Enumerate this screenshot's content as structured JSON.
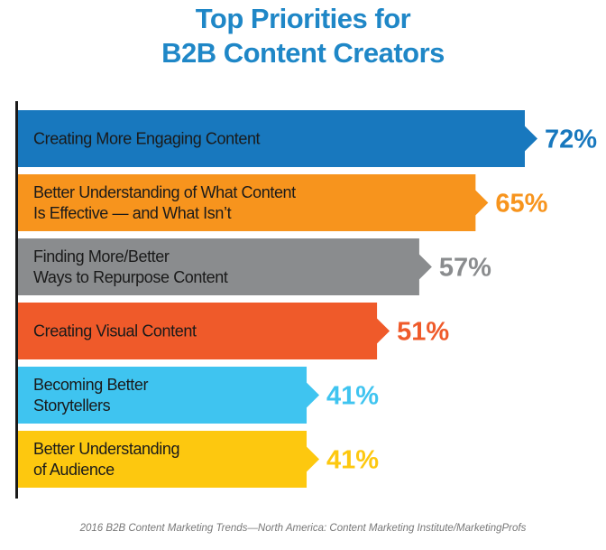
{
  "chart_data": {
    "type": "bar",
    "orientation": "horizontal",
    "title": [
      "Top Priorities for",
      "B2B Content Creators"
    ],
    "categories": [
      [
        "Creating More Engaging Content"
      ],
      [
        "Better Understanding of What Content",
        "Is Effective — and What Isn’t"
      ],
      [
        "Finding More/Better",
        "Ways to Repurpose Content"
      ],
      [
        "Creating Visual Content"
      ],
      [
        "Becoming Better",
        "Storytellers"
      ],
      [
        "Better Understanding",
        "of Audience"
      ]
    ],
    "values": [
      72,
      65,
      57,
      51,
      41,
      41
    ],
    "value_labels": [
      "72%",
      "65%",
      "57%",
      "51%",
      "41%",
      "41%"
    ],
    "colors": [
      "#1878be",
      "#f7941d",
      "#8a8c8e",
      "#ef5a2a",
      "#3fc4f0",
      "#fdc80f"
    ],
    "value_label_colors": [
      "#1878be",
      "#f7941d",
      "#8a8c8e",
      "#ef5a2a",
      "#3fc4f0",
      "#fdc80f"
    ],
    "xlim": [
      0,
      72
    ],
    "grid": false,
    "legend": "none"
  },
  "footer": {
    "source": "2016 B2B Content Marketing Trends—North America: Content Marketing Institute/MarketingProfs"
  }
}
